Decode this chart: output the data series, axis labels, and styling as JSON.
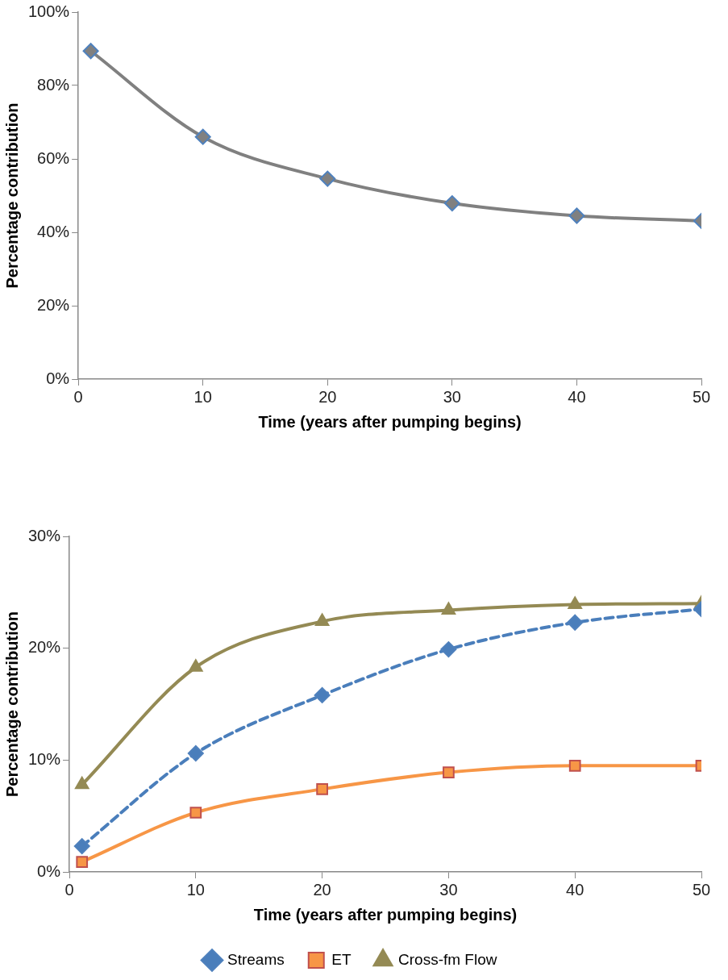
{
  "chart_data": [
    {
      "type": "line",
      "xlabel": "Time (years after pumping begins)",
      "ylabel": "Percentage contribution",
      "x": [
        1,
        10,
        20,
        30,
        40,
        50
      ],
      "series": [
        {
          "color": "#808080",
          "values": [
            89.4,
            66.0,
            54.6,
            47.9,
            44.5,
            43.1
          ],
          "marker": "diamond",
          "line_style": "solid"
        }
      ],
      "xlim": [
        0,
        50
      ],
      "xticks": [
        0,
        10,
        20,
        30,
        40,
        50
      ],
      "ylim": [
        0,
        100
      ],
      "yticks": [
        {
          "value": 0,
          "label": "0%"
        },
        {
          "value": 20,
          "label": "20%"
        },
        {
          "value": 40,
          "label": "40%"
        },
        {
          "value": 60,
          "label": "60%"
        },
        {
          "value": 80,
          "label": "80%"
        },
        {
          "value": 100,
          "label": "100%"
        }
      ],
      "grid": false,
      "legend": false
    },
    {
      "type": "line",
      "xlabel": "Time (years after pumping begins)",
      "ylabel": "Percentage contribution",
      "x": [
        1,
        10,
        20,
        30,
        40,
        50
      ],
      "series": [
        {
          "name": "Streams",
          "color": "#4a7ebb",
          "values": [
            2.3,
            10.6,
            15.8,
            19.9,
            22.3,
            23.5
          ],
          "marker": "diamond",
          "line_style": "dashed"
        },
        {
          "name": "ET",
          "color": "#f79646",
          "values": [
            0.9,
            5.3,
            7.4,
            8.9,
            9.5,
            9.5
          ],
          "marker": "square",
          "line_style": "solid"
        },
        {
          "name": "Cross-fm Flow",
          "color": "#948a54",
          "values": [
            7.8,
            18.3,
            22.4,
            23.4,
            23.9,
            24.0
          ],
          "marker": "triangle",
          "line_style": "solid"
        }
      ],
      "xlim": [
        0,
        50
      ],
      "xticks": [
        0,
        10,
        20,
        30,
        40,
        50
      ],
      "ylim": [
        0,
        30
      ],
      "yticks": [
        {
          "value": 0,
          "label": "0%"
        },
        {
          "value": 10,
          "label": "10%"
        },
        {
          "value": 20,
          "label": "20%"
        },
        {
          "value": 30,
          "label": "30%"
        }
      ],
      "grid": false,
      "legend": "bottom"
    }
  ]
}
